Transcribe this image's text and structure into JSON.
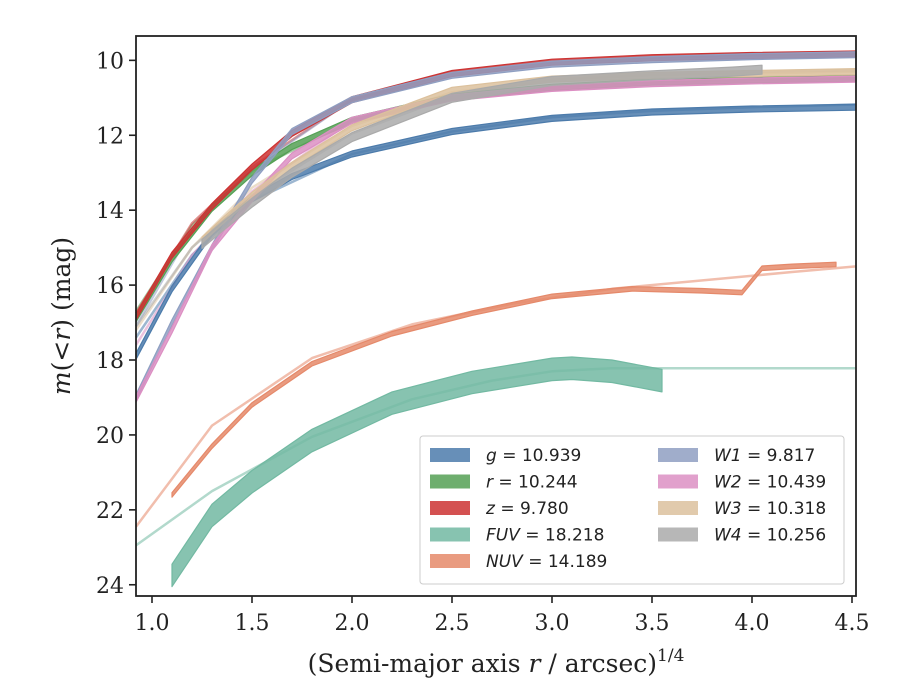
{
  "chart_data": {
    "type": "line",
    "xlabel": {
      "main": "(Semi-major axis ",
      "var": "r",
      "rest": " / arcsec)",
      "sup": "1/4"
    },
    "ylabel": {
      "m": "m",
      "open": "(<",
      "var": "r",
      "close": ") (mag)"
    },
    "xlim": [
      0.92,
      4.52
    ],
    "ylim": [
      24.3,
      9.35
    ],
    "y_inverted": true,
    "x_ticks": [
      1.0,
      1.5,
      2.0,
      2.5,
      3.0,
      3.5,
      4.0,
      4.5
    ],
    "x_tick_labels": [
      "1.0",
      "1.5",
      "2.0",
      "2.5",
      "3.0",
      "3.5",
      "4.0",
      "4.5"
    ],
    "y_ticks": [
      10,
      12,
      14,
      16,
      18,
      20,
      22,
      24
    ],
    "y_tick_labels": [
      "10",
      "12",
      "14",
      "16",
      "18",
      "20",
      "22",
      "24"
    ],
    "grid": false,
    "legend_position": "lower-right",
    "series": [
      {
        "name": "g",
        "value": "10.939",
        "color": "#4c7bab",
        "x": [
          0.92,
          1.1,
          1.3,
          1.5,
          1.7,
          2.0,
          2.5,
          3.0,
          3.5,
          4.0,
          4.52
        ],
        "y": [
          17.9,
          16.1,
          14.6,
          13.7,
          13.1,
          12.5,
          11.9,
          11.55,
          11.38,
          11.3,
          11.25
        ],
        "band": 0.08,
        "model_x": [
          0.92,
          1.2,
          1.5,
          2.0,
          2.5,
          3.0,
          3.5,
          4.0,
          4.52
        ],
        "model_y": [
          17.4,
          15.2,
          13.75,
          12.5,
          11.9,
          11.52,
          11.35,
          11.25,
          11.18
        ]
      },
      {
        "name": "r",
        "value": "10.244",
        "color": "#55a055",
        "x": [
          0.92,
          1.1,
          1.3,
          1.5,
          1.7,
          2.0,
          2.5,
          3.0,
          3.5,
          4.0,
          4.52
        ],
        "y": [
          16.9,
          15.3,
          13.95,
          13.0,
          12.3,
          11.6,
          10.98,
          10.72,
          10.58,
          10.52,
          10.48
        ],
        "band": 0.08,
        "model_x": [
          0.92,
          1.2,
          1.5,
          2.0,
          2.5,
          3.0,
          3.5,
          4.0,
          4.52
        ],
        "model_y": [
          16.7,
          14.4,
          12.95,
          11.6,
          10.98,
          10.72,
          10.58,
          10.52,
          10.48
        ]
      },
      {
        "name": "z",
        "value": "9.780",
        "color": "#cc3333",
        "x": [
          0.92,
          1.1,
          1.3,
          1.5,
          1.7,
          2.0,
          2.5,
          3.0,
          3.5,
          4.0,
          4.52
        ],
        "y": [
          16.85,
          15.2,
          13.9,
          12.85,
          11.95,
          11.05,
          10.35,
          10.05,
          9.93,
          9.87,
          9.83
        ],
        "band": 0.08,
        "model_x": [
          0.92,
          1.2,
          1.5,
          2.0,
          2.5,
          3.0,
          3.5,
          4.0,
          4.52
        ],
        "model_y": [
          16.75,
          14.35,
          12.85,
          11.05,
          10.35,
          10.05,
          9.93,
          9.87,
          9.83
        ]
      },
      {
        "name": "FUV",
        "value": "18.218",
        "color": "#72b9a2",
        "x": [
          1.1,
          1.3,
          1.5,
          1.8,
          2.2,
          2.6,
          3.0,
          3.1,
          3.3,
          3.55
        ],
        "y": [
          23.75,
          22.15,
          21.25,
          20.15,
          19.15,
          18.6,
          18.25,
          18.22,
          18.3,
          18.55
        ],
        "band": 0.3,
        "model_x": [
          0.92,
          1.3,
          1.8,
          2.3,
          2.7,
          3.0,
          3.3,
          4.52
        ],
        "model_y": [
          22.95,
          21.5,
          20.05,
          19.05,
          18.55,
          18.3,
          18.22,
          18.22
        ]
      },
      {
        "name": "NUV",
        "value": "14.189",
        "color": "#e5896a",
        "x": [
          1.1,
          1.3,
          1.5,
          1.8,
          2.2,
          2.6,
          3.0,
          3.4,
          3.75,
          3.95,
          4.05,
          4.2,
          4.42
        ],
        "y": [
          21.6,
          20.3,
          19.2,
          18.1,
          17.3,
          16.75,
          16.3,
          16.1,
          16.15,
          16.2,
          15.55,
          15.5,
          15.45
        ],
        "band": 0.06,
        "model_x": [
          0.92,
          1.3,
          1.8,
          2.3,
          2.8,
          3.3,
          3.8,
          4.2,
          4.52
        ],
        "model_y": [
          22.45,
          19.75,
          17.95,
          17.05,
          16.5,
          16.1,
          15.85,
          15.65,
          15.5
        ]
      },
      {
        "name": "W1",
        "value": "9.817",
        "color": "#8f9fc2",
        "x": [
          0.92,
          1.1,
          1.3,
          1.5,
          1.7,
          2.0,
          2.5,
          3.0,
          3.5,
          4.0,
          4.52
        ],
        "y": [
          19.0,
          17.0,
          15.0,
          13.2,
          11.9,
          11.05,
          10.4,
          10.1,
          9.98,
          9.9,
          9.85
        ],
        "band": 0.08,
        "model_x": [
          0.92,
          1.2,
          1.5,
          2.0,
          2.5,
          3.0,
          3.5,
          4.0,
          4.52
        ],
        "model_y": [
          17.1,
          14.5,
          12.9,
          11.05,
          10.38,
          10.08,
          9.96,
          9.9,
          9.85
        ]
      },
      {
        "name": "W2",
        "value": "10.439",
        "color": "#dc8fc3",
        "x": [
          0.92,
          1.1,
          1.3,
          1.5,
          1.7,
          2.0,
          2.5,
          3.0,
          3.5,
          4.0,
          4.52
        ],
        "y": [
          19.05,
          17.2,
          15.0,
          13.7,
          12.55,
          11.6,
          11.0,
          10.75,
          10.62,
          10.55,
          10.5
        ],
        "band": 0.08,
        "model_x": [
          0.92,
          1.2,
          1.5,
          2.0,
          2.5,
          3.0,
          3.5,
          4.0,
          4.52
        ],
        "model_y": [
          17.6,
          15.2,
          13.5,
          11.6,
          11.0,
          10.75,
          10.62,
          10.55,
          10.5
        ]
      },
      {
        "name": "W3",
        "value": "10.318",
        "color": "#dcc19d",
        "x": [
          1.25,
          1.35,
          1.5,
          1.7,
          2.0,
          2.5,
          3.0,
          3.5,
          4.0,
          4.52
        ],
        "y": [
          14.8,
          14.3,
          13.6,
          12.8,
          11.8,
          10.8,
          10.5,
          10.4,
          10.35,
          10.3
        ],
        "band": 0.08,
        "model_x": [
          0.92,
          1.2,
          1.5,
          2.0,
          2.5,
          3.0,
          3.5,
          4.0,
          4.52
        ],
        "model_y": [
          17.2,
          15.0,
          13.4,
          11.75,
          10.85,
          10.52,
          10.4,
          10.35,
          10.3
        ]
      },
      {
        "name": "W4",
        "value": "10.256",
        "color": "#aaaaaa",
        "x": [
          1.25,
          1.35,
          1.5,
          1.7,
          2.0,
          2.5,
          3.0,
          3.5,
          3.9,
          4.05
        ],
        "y": [
          14.9,
          14.45,
          13.8,
          13.0,
          12.05,
          11.0,
          10.55,
          10.4,
          10.3,
          10.25
        ],
        "band": 0.12,
        "model_x": [
          0.92,
          1.2,
          1.5,
          2.0,
          2.5,
          3.0,
          3.5,
          4.0,
          4.52
        ],
        "model_y": [
          17.1,
          15.0,
          13.6,
          11.95,
          10.95,
          10.52,
          10.38,
          10.3,
          10.27
        ]
      }
    ]
  }
}
